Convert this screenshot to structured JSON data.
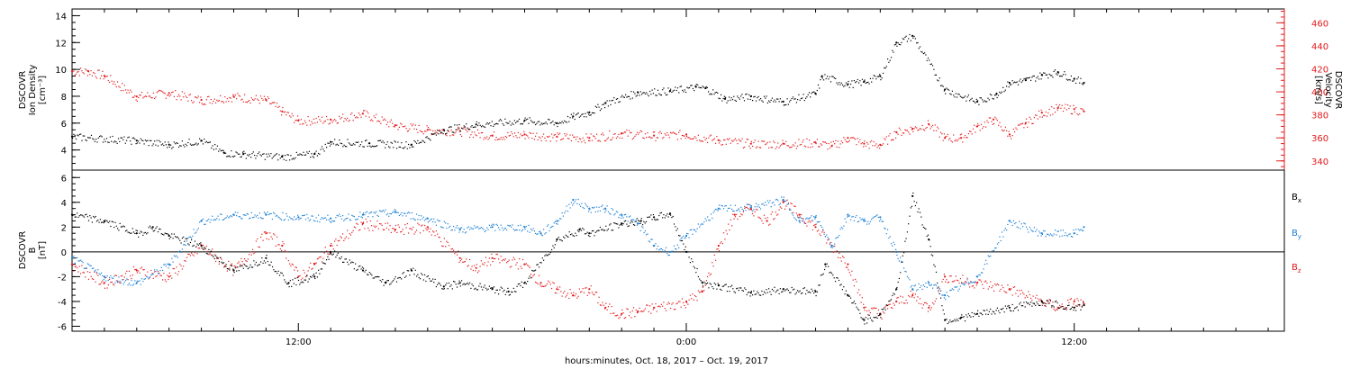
{
  "chart_data": [
    {
      "type": "scatter",
      "panel": "top",
      "ylabel_left": [
        "DSCOVR",
        "Ion Density",
        "[cm⁻³]"
      ],
      "ylabel_right": [
        "DSCOVR",
        "Velocity",
        "[km/s]"
      ],
      "ylim_left": [
        2.5,
        14.5
      ],
      "yticks_left": [
        4,
        6,
        8,
        10,
        12,
        14
      ],
      "ylim_right": [
        332,
        472
      ],
      "yticks_right": [
        340,
        360,
        380,
        400,
        420,
        440,
        460
      ],
      "xlim": [
        5.0,
        42.5
      ],
      "series": [
        {
          "name": "",
          "axis": "left",
          "color": "#000000",
          "x": [
            5.0,
            7.0,
            8.0,
            9.0,
            9.7,
            10.3,
            11.5,
            12.5,
            13.0,
            14.2,
            15.5,
            16.5,
            17.5,
            19.0,
            20.0,
            20.5,
            21.0,
            21.5,
            22.5,
            23.5,
            24.3,
            24.6,
            25.2,
            26.0,
            27.0,
            28.0,
            28.2,
            29.0,
            29.5,
            30.0,
            30.5,
            31.0,
            32.0,
            33.0,
            33.6,
            34.0,
            34.5,
            35.0,
            35.5,
            36.0,
            36.3
          ],
          "y": [
            5.0,
            4.7,
            4.4,
            4.7,
            3.8,
            3.7,
            3.5,
            3.7,
            4.6,
            4.5,
            4.4,
            5.5,
            5.9,
            6.2,
            6.0,
            6.5,
            6.8,
            7.5,
            8.3,
            8.4,
            8.7,
            8.6,
            7.8,
            8.0,
            7.6,
            8.2,
            9.5,
            8.9,
            9.1,
            9.5,
            12.0,
            12.5,
            8.5,
            7.6,
            8.2,
            9.0,
            9.2,
            9.6,
            9.8,
            9.3,
            9.0
          ]
        },
        {
          "name": "",
          "axis": "right",
          "color": "#e41a1c",
          "x": [
            5.0,
            5.5,
            6.0,
            7.0,
            8.0,
            9.0,
            10.0,
            11.0,
            11.5,
            12.0,
            13.0,
            14.0,
            15.0,
            16.0,
            17.0,
            18.0,
            19.0,
            20.0,
            21.0,
            22.0,
            23.0,
            24.0,
            25.0,
            26.0,
            27.0,
            28.0,
            28.5,
            29.0,
            29.5,
            30.0,
            30.5,
            31.0,
            31.5,
            32.0,
            32.5,
            33.0,
            33.5,
            34.0,
            34.5,
            35.0,
            35.5,
            36.0,
            36.3
          ],
          "y": [
            418,
            418,
            414,
            396,
            399,
            393,
            396,
            393,
            383,
            375,
            376,
            381,
            371,
            367,
            366,
            362,
            363,
            361,
            360,
            364,
            362,
            363,
            358,
            355,
            355,
            356,
            353,
            360,
            355,
            354,
            365,
            368,
            372,
            360,
            360,
            370,
            376,
            363,
            373,
            382,
            386,
            385,
            383
          ]
        }
      ]
    },
    {
      "type": "scatter",
      "panel": "bottom",
      "ylabel": [
        "DSCOVR",
        "B",
        "[nT]"
      ],
      "ylim": [
        -6.4,
        6.6
      ],
      "yticks": [
        -6,
        -4,
        -2,
        0,
        2,
        4,
        6
      ],
      "zero_line": 0,
      "xlim": [
        5.0,
        42.5
      ],
      "xticks": [
        12,
        24,
        36
      ],
      "xtick_labels": [
        "12:00",
        "0:00",
        "12:00"
      ],
      "series": [
        {
          "name": "Bx",
          "color": "#000000",
          "x": [
            5.0,
            6.0,
            7.0,
            7.5,
            8.0,
            9.0,
            10.0,
            11.0,
            11.7,
            12.5,
            13.0,
            14.0,
            14.7,
            15.5,
            16.5,
            17.0,
            18.0,
            18.5,
            19.0,
            20.0,
            20.7,
            21.0,
            22.0,
            22.6,
            23.0,
            23.5,
            24.0,
            24.5,
            25.0,
            26.0,
            27.0,
            28.0,
            28.3,
            29.0,
            29.5,
            30.0,
            30.5,
            31.0,
            31.5,
            32.0,
            32.5,
            33.0,
            34.0,
            35.0,
            36.0,
            36.3
          ],
          "y": [
            3.0,
            2.5,
            1.5,
            2.0,
            1.3,
            0.5,
            -1.5,
            -0.5,
            -2.5,
            -2.0,
            0.0,
            -1.5,
            -2.5,
            -1.5,
            -2.8,
            -2.5,
            -3.0,
            -3.2,
            -2.5,
            1.0,
            1.8,
            1.5,
            2.3,
            2.5,
            2.8,
            3.1,
            0.0,
            -2.5,
            -2.7,
            -3.3,
            -3.0,
            -3.2,
            -1.0,
            -3.5,
            -5.5,
            -5.0,
            -3.0,
            4.5,
            1.0,
            -5.5,
            -5.3,
            -5.0,
            -4.5,
            -4.0,
            -4.5,
            -4.3
          ]
        },
        {
          "name": "By",
          "color": "#1a7fd4",
          "x": [
            5.0,
            6.0,
            7.0,
            8.0,
            9.0,
            10.0,
            11.0,
            12.0,
            13.0,
            14.0,
            15.0,
            16.0,
            17.0,
            18.0,
            19.0,
            19.5,
            20.0,
            20.5,
            21.0,
            21.5,
            22.0,
            22.5,
            23.0,
            23.5,
            24.0,
            25.0,
            26.0,
            27.0,
            27.5,
            28.0,
            28.5,
            29.0,
            29.5,
            30.0,
            30.5,
            31.0,
            31.5,
            32.0,
            33.0,
            34.0,
            35.0,
            36.0,
            36.3
          ],
          "y": [
            -0.5,
            -2.0,
            -2.5,
            -1.0,
            2.5,
            3.0,
            3.0,
            2.8,
            2.7,
            3.0,
            3.2,
            2.7,
            1.8,
            2.0,
            2.0,
            1.5,
            2.5,
            4.2,
            3.5,
            3.5,
            3.0,
            2.3,
            0.5,
            0.0,
            1.3,
            3.5,
            3.6,
            4.2,
            2.5,
            2.8,
            0.5,
            3.0,
            2.5,
            2.8,
            0.0,
            -3.0,
            -2.5,
            -3.5,
            -2.0,
            2.5,
            1.5,
            1.5,
            2.0
          ]
        },
        {
          "name": "Bz",
          "color": "#e41a1c",
          "x": [
            5.0,
            6.0,
            7.0,
            8.0,
            9.0,
            10.0,
            11.0,
            11.5,
            12.0,
            12.5,
            13.0,
            14.0,
            15.0,
            16.0,
            17.0,
            17.5,
            18.0,
            19.0,
            19.5,
            20.0,
            20.5,
            21.0,
            21.5,
            22.0,
            22.5,
            23.0,
            24.0,
            24.5,
            25.0,
            25.5,
            26.0,
            26.5,
            27.0,
            27.5,
            28.0,
            28.5,
            29.0,
            29.5,
            30.0,
            30.5,
            31.0,
            31.5,
            32.0,
            33.0,
            34.0,
            35.0,
            35.5,
            36.0,
            36.3
          ],
          "y": [
            -1.0,
            -2.5,
            -1.5,
            -2.0,
            0.5,
            -1.5,
            1.5,
            0.5,
            -2.0,
            -1.0,
            0.5,
            2.3,
            1.8,
            2.0,
            -0.5,
            -1.3,
            -0.5,
            -1.0,
            -2.5,
            -3.0,
            -3.5,
            -3.0,
            -4.5,
            -5.0,
            -4.8,
            -4.5,
            -4.0,
            -3.2,
            0.5,
            3.0,
            3.5,
            2.5,
            4.0,
            3.0,
            2.0,
            0.5,
            -1.0,
            -4.5,
            -5.0,
            -4.0,
            -3.5,
            -4.5,
            -2.0,
            -2.5,
            -3.0,
            -4.0,
            -4.5,
            -4.0,
            -4.2
          ]
        }
      ]
    }
  ],
  "legend": {
    "bx": {
      "main": "B",
      "sub": "x",
      "color": "#000000"
    },
    "by": {
      "main": "B",
      "sub": "y",
      "color": "#1a7fd4"
    },
    "bz": {
      "main": "B",
      "sub": "z",
      "color": "#e41a1c"
    }
  },
  "footer": "hours:minutes, Oct. 18, 2017 – Oct. 19, 2017"
}
